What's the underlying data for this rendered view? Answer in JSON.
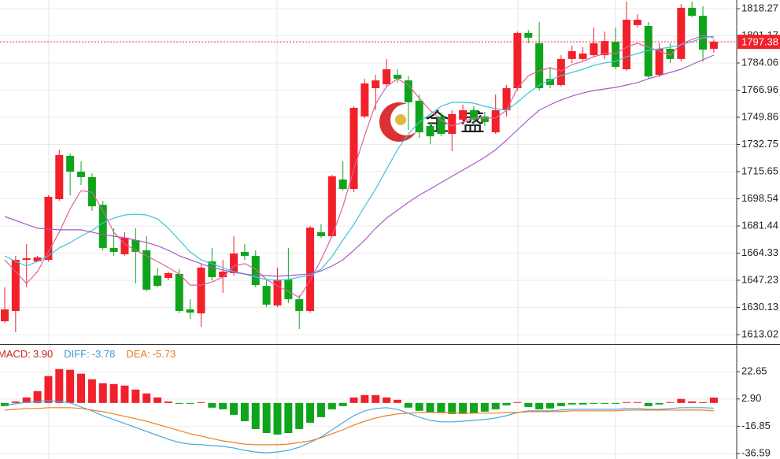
{
  "chart_data": [
    {
      "type": "candlestick",
      "open": [
        1621.4,
        1627.9,
        1660.1,
        1659.1,
        1660.1,
        1698.3,
        1725.6,
        1715.6,
        1712.2,
        1694.8,
        1667.6,
        1663.6,
        1672.5,
        1666.1,
        1650.2,
        1648.7,
        1651.2,
        1628.9,
        1626.4,
        1659.1,
        1649.2,
        1651.7,
        1665.1,
        1662.6,
        1643.7,
        1631.4,
        1647.7,
        1635.3,
        1627.9,
        1677.5,
        1675.0,
        1710.7,
        1704.7,
        1750.4,
        1768.2,
        1770.7,
        1776.6,
        1773.1,
        1760.3,
        1744.4,
        1750.4,
        1739.4,
        1748.4,
        1754.3,
        1750.4,
        1740.4,
        1754.3,
        1768.2,
        1802.9,
        1796.5,
        1774.1,
        1770.2,
        1786.6,
        1786.6,
        1789.0,
        1789.0,
        1797.4,
        1780.1,
        1807.9,
        1807.4,
        1776.6,
        1793.0,
        1786.6,
        1818.8,
        1813.8,
        1793.0
      ],
      "high": [
        1642.8,
        1662.6,
        1670.0,
        1662.6,
        1700.8,
        1729.5,
        1727.0,
        1722.1,
        1714.6,
        1697.3,
        1680.0,
        1677.5,
        1680.0,
        1675.0,
        1655.2,
        1652.7,
        1654.2,
        1635.3,
        1657.7,
        1667.6,
        1660.1,
        1675.0,
        1670.0,
        1666.1,
        1647.7,
        1655.2,
        1667.6,
        1637.8,
        1681.5,
        1682.5,
        1713.7,
        1722.1,
        1756.8,
        1774.1,
        1776.6,
        1786.6,
        1780.1,
        1775.6,
        1764.2,
        1746.9,
        1752.9,
        1754.3,
        1757.8,
        1756.8,
        1753.4,
        1764.2,
        1770.2,
        1803.9,
        1804.9,
        1809.9,
        1781.6,
        1789.0,
        1795.0,
        1794.0,
        1806.4,
        1803.9,
        1806.4,
        1822.7,
        1814.8,
        1809.9,
        1796.5,
        1796.5,
        1821.2,
        1822.7,
        1819.8,
        1798.9
      ],
      "low": [
        1620.5,
        1614.5,
        1642.8,
        1659.1,
        1659.1,
        1697.3,
        1700.8,
        1707.2,
        1690.9,
        1666.1,
        1662.6,
        1662.6,
        1645.2,
        1640.3,
        1642.8,
        1647.2,
        1626.4,
        1622.9,
        1618.0,
        1647.2,
        1639.3,
        1650.2,
        1660.1,
        1642.8,
        1630.4,
        1630.4,
        1632.9,
        1616.5,
        1626.9,
        1674.0,
        1674.0,
        1703.7,
        1702.7,
        1749.4,
        1754.3,
        1769.2,
        1771.7,
        1741.9,
        1736.9,
        1733.0,
        1737.9,
        1728.5,
        1745.9,
        1744.4,
        1744.4,
        1739.4,
        1750.4,
        1766.7,
        1796.5,
        1766.7,
        1768.2,
        1769.2,
        1784.1,
        1785.6,
        1788.0,
        1786.6,
        1780.1,
        1779.1,
        1806.4,
        1774.1,
        1775.1,
        1784.1,
        1785.0,
        1812.8,
        1785.0,
        1790.5
      ],
      "close": [
        1628.9,
        1660.1,
        1661.1,
        1661.6,
        1699.8,
        1726.1,
        1715.6,
        1712.2,
        1693.8,
        1667.6,
        1665.1,
        1674.0,
        1665.1,
        1641.3,
        1643.7,
        1651.7,
        1627.9,
        1626.9,
        1655.2,
        1649.2,
        1652.7,
        1664.1,
        1662.6,
        1644.2,
        1631.9,
        1647.7,
        1635.3,
        1627.9,
        1680.4,
        1675.0,
        1712.7,
        1704.7,
        1755.8,
        1771.2,
        1773.1,
        1780.1,
        1774.1,
        1759.3,
        1740.4,
        1737.9,
        1739.4,
        1751.9,
        1754.3,
        1748.4,
        1746.9,
        1754.3,
        1768.2,
        1802.9,
        1800.0,
        1768.2,
        1770.2,
        1786.6,
        1791.5,
        1790.0,
        1796.5,
        1797.9,
        1781.6,
        1811.3,
        1811.3,
        1775.6,
        1793.0,
        1786.6,
        1818.8,
        1813.8,
        1792.5,
        1797.4
      ],
      "up_color": "#f2202a",
      "down_color": "#0ea51b",
      "lines": [
        {
          "color": "#e2609a",
          "values": [
            1660.1,
            1652.7,
            1645.2,
            1652.7,
            1665.1,
            1677.5,
            1692.3,
            1703.7,
            1702.7,
            1690.9,
            1677.5,
            1670.0,
            1666.1,
            1662.6,
            1659.1,
            1655.2,
            1651.2,
            1644.2,
            1644.2,
            1646.2,
            1649.2,
            1656.2,
            1657.7,
            1654.2,
            1647.7,
            1643.7,
            1640.3,
            1636.3,
            1647.2,
            1660.1,
            1675.0,
            1693.8,
            1717.1,
            1738.5,
            1758.3,
            1769.2,
            1774.1,
            1770.2,
            1761.8,
            1754.3,
            1747.9,
            1744.4,
            1746.9,
            1749.4,
            1749.4,
            1749.4,
            1754.3,
            1768.2,
            1776.1,
            1779.1,
            1781.1,
            1779.1,
            1783.1,
            1785.0,
            1788.0,
            1790.0,
            1790.0,
            1794.0,
            1796.5,
            1794.0,
            1791.5,
            1789.0,
            1796.0,
            1798.9,
            1801.4,
            1799.9
          ]
        },
        {
          "color": "#3fc4da",
          "values": [
            1662.6,
            1659.1,
            1656.2,
            1659.1,
            1662.6,
            1667.6,
            1671.0,
            1675.0,
            1678.5,
            1683.4,
            1686.4,
            1688.4,
            1688.9,
            1688.4,
            1685.9,
            1680.0,
            1672.5,
            1665.1,
            1660.1,
            1657.7,
            1655.2,
            1652.7,
            1651.2,
            1649.2,
            1647.7,
            1647.2,
            1647.7,
            1649.2,
            1650.2,
            1654.2,
            1662.1,
            1672.5,
            1682.4,
            1693.8,
            1704.7,
            1717.1,
            1729.5,
            1739.4,
            1746.9,
            1751.8,
            1756.8,
            1759.3,
            1759.3,
            1758.8,
            1756.8,
            1755.3,
            1754.3,
            1759.3,
            1765.2,
            1770.2,
            1773.2,
            1776.1,
            1778.1,
            1780.1,
            1782.6,
            1784.1,
            1785.0,
            1788.0,
            1790.0,
            1792.0,
            1793.0,
            1794.0,
            1795.5,
            1797.4,
            1799.9,
            1800.9
          ]
        },
        {
          "color": "#a95ac6",
          "values": [
            1687.4,
            1684.9,
            1682.4,
            1680.0,
            1679.5,
            1679.0,
            1679.0,
            1679.0,
            1677.5,
            1676.0,
            1675.0,
            1674.0,
            1672.5,
            1671.0,
            1669.0,
            1666.1,
            1662.6,
            1660.1,
            1657.7,
            1655.2,
            1653.7,
            1652.2,
            1651.2,
            1650.2,
            1650.2,
            1649.7,
            1650.2,
            1650.7,
            1651.2,
            1653.2,
            1656.2,
            1660.1,
            1666.1,
            1672.5,
            1680.0,
            1686.4,
            1691.3,
            1696.3,
            1700.8,
            1704.7,
            1708.7,
            1712.7,
            1716.6,
            1720.6,
            1724.6,
            1729.5,
            1735.5,
            1741.9,
            1748.4,
            1754.3,
            1757.8,
            1760.8,
            1763.2,
            1765.2,
            1766.7,
            1767.7,
            1768.7,
            1770.2,
            1771.7,
            1774.1,
            1776.1,
            1778.1,
            1780.1,
            1783.1,
            1786.1,
            1789.0
          ]
        }
      ],
      "ylim": [
        1607.07,
        1823.73
      ],
      "yticks": [
        1818.27,
        1801.17,
        1784.06,
        1766.96,
        1749.86,
        1732.75,
        1715.65,
        1698.54,
        1681.44,
        1664.33,
        1647.23,
        1630.13,
        1613.02
      ],
      "last_price": 1797.38,
      "grid": true,
      "watermark": "金盛"
    },
    {
      "type": "macd",
      "values": [
        -2.3,
        1.1,
        4.0,
        8.6,
        19.5,
        24.6,
        24.0,
        21.2,
        17.2,
        14.3,
        13.7,
        12.6,
        9.7,
        6.9,
        4.0,
        1.1,
        -0.6,
        -0.6,
        0.6,
        -3.4,
        -4.6,
        -8.6,
        -13.2,
        -18.9,
        -21.8,
        -22.9,
        -21.8,
        -18.9,
        -14.3,
        -10.3,
        -4.6,
        -2.3,
        4.0,
        5.7,
        5.7,
        4.0,
        2.3,
        -3.4,
        -5.7,
        -6.9,
        -7.4,
        -8.0,
        -8.0,
        -7.4,
        -6.3,
        -4.6,
        -1.7,
        0.6,
        -2.9,
        -4.6,
        -4.0,
        -2.3,
        -1.1,
        -1.1,
        -0.6,
        -0.6,
        -0.6,
        0.6,
        0.6,
        -2.3,
        -1.1,
        0.6,
        2.9,
        1.1,
        0.6,
        3.9
      ],
      "up_color": "#f2202a",
      "down_color": "#0ea51b",
      "lines": [
        {
          "color": "#4aa8e0",
          "values": [
            -1.7,
            -0.6,
            0.6,
            1.1,
            1.7,
            1.1,
            0,
            -2.9,
            -5.7,
            -9.2,
            -12.0,
            -14.9,
            -17.7,
            -20.6,
            -23.5,
            -26.3,
            -28.6,
            -29.8,
            -30.3,
            -30.9,
            -31.5,
            -32.6,
            -34.3,
            -35.5,
            -36.1,
            -35.5,
            -34.3,
            -32.1,
            -28.6,
            -24.6,
            -19.5,
            -14.3,
            -9.2,
            -5.7,
            -4.0,
            -3.4,
            -4.6,
            -7.4,
            -10.3,
            -12.6,
            -13.7,
            -13.7,
            -13.2,
            -12.6,
            -12.0,
            -10.9,
            -9.2,
            -6.9,
            -5.7,
            -5.7,
            -5.7,
            -5.2,
            -4.6,
            -4.6,
            -4.6,
            -4.6,
            -4.6,
            -4.0,
            -4.0,
            -4.6,
            -4.6,
            -4.0,
            -3.4,
            -3.4,
            -3.4,
            -3.78
          ]
        },
        {
          "color": "#ee8020",
          "values": [
            -5.2,
            -4.6,
            -4.0,
            -4.0,
            -3.4,
            -3.4,
            -3.4,
            -4.0,
            -5.2,
            -6.3,
            -8.0,
            -9.7,
            -11.4,
            -13.2,
            -15.5,
            -17.7,
            -20.0,
            -22.3,
            -24.0,
            -25.8,
            -27.5,
            -28.6,
            -29.8,
            -30.3,
            -30.3,
            -30.3,
            -29.8,
            -28.6,
            -27.5,
            -25.2,
            -22.3,
            -19.5,
            -16.0,
            -13.2,
            -10.9,
            -9.2,
            -8.0,
            -7.4,
            -6.9,
            -6.9,
            -6.9,
            -6.9,
            -7.4,
            -7.4,
            -7.4,
            -7.4,
            -6.9,
            -6.9,
            -6.3,
            -6.3,
            -6.3,
            -6.3,
            -5.7,
            -5.7,
            -5.7,
            -5.7,
            -5.7,
            -5.2,
            -5.2,
            -5.2,
            -5.2,
            -5.2,
            -5.2,
            -5.2,
            -5.2,
            -5.73
          ]
        }
      ],
      "ylim": [
        -40.6,
        42.11
      ],
      "yticks": [
        22.65,
        {
          "value": 2.9,
          "label": "2.90"
        },
        -16.85,
        -36.59
      ],
      "grid": true,
      "readout": [
        {
          "label": "MACD:",
          "text": "3.90",
          "color": "#c8281e"
        },
        {
          "label": "DIFF:",
          "text": "-3.78",
          "color": "#3a9ad9"
        },
        {
          "label": "DEA:",
          "text": "-5.73",
          "color": "#e87b1e"
        }
      ]
    }
  ]
}
